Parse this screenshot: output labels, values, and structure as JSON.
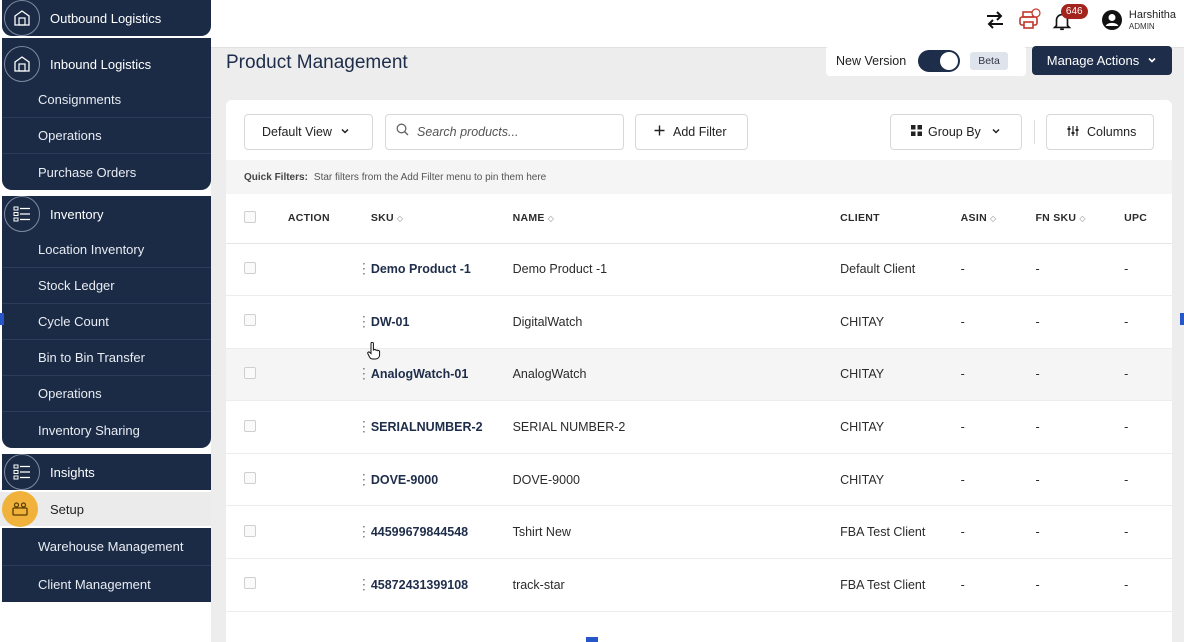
{
  "sidebar": {
    "outbound": "Outbound Logistics",
    "inbound": "Inbound Logistics",
    "inbound_items": [
      "Consignments",
      "Operations",
      "Purchase Orders"
    ],
    "inventory": "Inventory",
    "inventory_items": [
      "Location Inventory",
      "Stock Ledger",
      "Cycle Count",
      "Bin to Bin Transfer",
      "Operations",
      "Inventory Sharing"
    ],
    "insights": "Insights",
    "setup": "Setup",
    "setup_items": [
      "Warehouse Management",
      "Client Management"
    ]
  },
  "topbar": {
    "notification_count": "646",
    "user_name": "Harshitha",
    "user_role": "ADMIN"
  },
  "page": {
    "title": "Product Management",
    "new_version_label": "New Version",
    "beta_label": "Beta",
    "manage_actions": "Manage Actions"
  },
  "toolbar": {
    "default_view": "Default View",
    "search_placeholder": "Search products...",
    "add_filter": "Add Filter",
    "group_by": "Group By",
    "columns": "Columns"
  },
  "quick_filters": {
    "label": "Quick Filters:",
    "hint": "Star filters from the Add Filter menu to pin them here"
  },
  "table": {
    "headers": {
      "action": "ACTION",
      "sku": "SKU",
      "name": "NAME",
      "client": "CLIENT",
      "asin": "ASIN",
      "fnsku": "FN SKU",
      "upc": "UPC"
    },
    "rows": [
      {
        "sku": "Demo Product -1",
        "name": "Demo Product -1",
        "client": "Default Client",
        "asin": "-",
        "fnsku": "-",
        "upc": "-"
      },
      {
        "sku": "DW-01",
        "name": "DigitalWatch",
        "client": "CHITAY",
        "asin": "-",
        "fnsku": "-",
        "upc": "-"
      },
      {
        "sku": "AnalogWatch-01",
        "name": "AnalogWatch",
        "client": "CHITAY",
        "asin": "-",
        "fnsku": "-",
        "upc": "-"
      },
      {
        "sku": "SERIALNUMBER-2",
        "name": "SERIAL NUMBER-2",
        "client": "CHITAY",
        "asin": "-",
        "fnsku": "-",
        "upc": "-"
      },
      {
        "sku": "DOVE-9000",
        "name": "DOVE-9000",
        "client": "CHITAY",
        "asin": "-",
        "fnsku": "-",
        "upc": "-"
      },
      {
        "sku": "44599679844548",
        "name": "Tshirt New",
        "client": "FBA Test Client",
        "asin": "-",
        "fnsku": "-",
        "upc": "-"
      },
      {
        "sku": "45872431399108",
        "name": "track-star",
        "client": "FBA Test Client",
        "asin": "-",
        "fnsku": "-",
        "upc": "-"
      }
    ]
  },
  "colors": {
    "navy": "#1e2d4a",
    "sidebar": "#1b2b45",
    "setup_accent": "#f0b23b",
    "badge": "#a3241c"
  }
}
